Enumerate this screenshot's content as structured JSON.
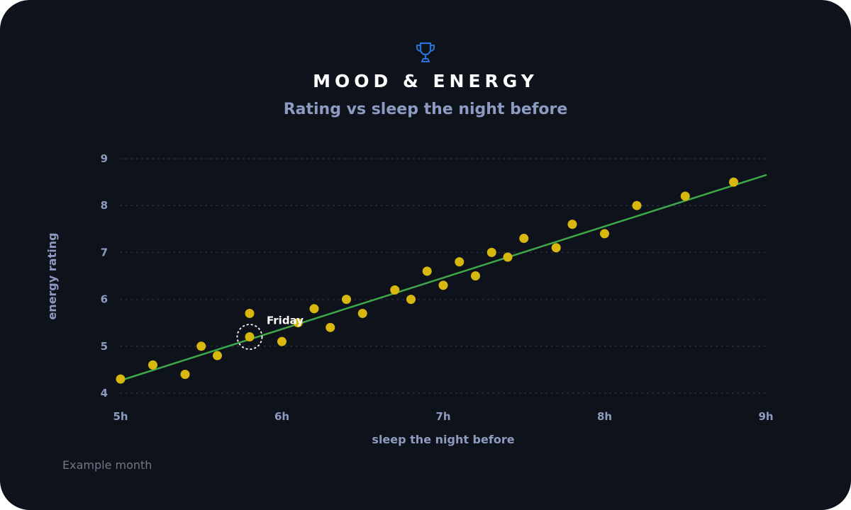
{
  "header": {
    "icon": "trophy-icon",
    "title": "MOOD & ENERGY",
    "subtitle": "Rating vs sleep the night before"
  },
  "footer": {
    "note": "Example month"
  },
  "colors": {
    "background": "#0e121b",
    "points": "#d8b70f",
    "trendline": "#3fa84a",
    "text_muted": "#8e9bc1",
    "icon": "#2a6fd6"
  },
  "chart_data": {
    "type": "scatter",
    "title": "MOOD & ENERGY",
    "subtitle": "Rating vs sleep the night before",
    "xlabel": "sleep the night before",
    "ylabel": "energy rating",
    "xlim": [
      5,
      9
    ],
    "ylim": [
      4,
      9
    ],
    "x_ticks": [
      {
        "value": 5,
        "label": "5h"
      },
      {
        "value": 6,
        "label": "6h"
      },
      {
        "value": 7,
        "label": "7h"
      },
      {
        "value": 8,
        "label": "8h"
      },
      {
        "value": 9,
        "label": "9h"
      }
    ],
    "y_ticks": [
      {
        "value": 4,
        "label": "4"
      },
      {
        "value": 5,
        "label": "5"
      },
      {
        "value": 6,
        "label": "6"
      },
      {
        "value": 7,
        "label": "7"
      },
      {
        "value": 8,
        "label": "8"
      },
      {
        "value": 9,
        "label": "9"
      }
    ],
    "grid": "horizontal dotted",
    "points": [
      {
        "x": 5.0,
        "y": 4.3
      },
      {
        "x": 5.2,
        "y": 4.6
      },
      {
        "x": 5.4,
        "y": 4.4
      },
      {
        "x": 5.5,
        "y": 5.0
      },
      {
        "x": 5.6,
        "y": 4.8
      },
      {
        "x": 5.8,
        "y": 5.7
      },
      {
        "x": 5.8,
        "y": 5.2
      },
      {
        "x": 6.0,
        "y": 5.1
      },
      {
        "x": 6.1,
        "y": 5.5
      },
      {
        "x": 6.2,
        "y": 5.8
      },
      {
        "x": 6.3,
        "y": 5.4
      },
      {
        "x": 6.4,
        "y": 6.0
      },
      {
        "x": 6.5,
        "y": 5.7
      },
      {
        "x": 6.7,
        "y": 6.2
      },
      {
        "x": 6.8,
        "y": 6.0
      },
      {
        "x": 6.9,
        "y": 6.6
      },
      {
        "x": 7.0,
        "y": 6.3
      },
      {
        "x": 7.1,
        "y": 6.8
      },
      {
        "x": 7.2,
        "y": 6.5
      },
      {
        "x": 7.3,
        "y": 7.0
      },
      {
        "x": 7.4,
        "y": 6.9
      },
      {
        "x": 7.5,
        "y": 7.3
      },
      {
        "x": 7.7,
        "y": 7.1
      },
      {
        "x": 7.8,
        "y": 7.6
      },
      {
        "x": 8.0,
        "y": 7.4
      },
      {
        "x": 8.2,
        "y": 8.0
      },
      {
        "x": 8.5,
        "y": 8.2
      },
      {
        "x": 8.8,
        "y": 8.5
      }
    ],
    "trendline": {
      "start": [
        5.0,
        4.27
      ],
      "end": [
        9.0,
        8.65
      ]
    },
    "annotation": {
      "text": "Friday",
      "x": 5.8,
      "y": 5.2
    }
  }
}
